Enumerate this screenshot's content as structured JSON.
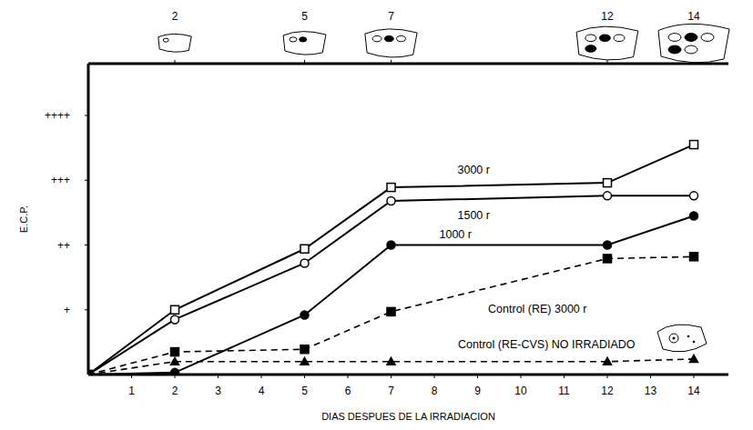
{
  "chart_data": {
    "type": "line",
    "x_label": "DIAS DESPUES DE LA IRRADIACION",
    "y_label": "E.C.P.",
    "x": [
      0,
      2,
      5,
      7,
      12,
      14
    ],
    "xlim": [
      0,
      14.8
    ],
    "xticks": [
      1,
      2,
      3,
      4,
      5,
      6,
      7,
      8,
      9,
      10,
      11,
      12,
      13,
      14
    ],
    "x2ticks": [
      2,
      5,
      7,
      12,
      14
    ],
    "ylim": [
      0,
      4.8
    ],
    "yticks": [
      {
        "value": 1,
        "label": "+"
      },
      {
        "value": 2,
        "label": "++"
      },
      {
        "value": 3,
        "label": "+++"
      },
      {
        "value": 4,
        "label": "++++"
      }
    ],
    "grid": false,
    "series": [
      {
        "name": "3000 r",
        "color": "#000000",
        "marker": "square-open",
        "line_style": "solid",
        "values": [
          0,
          1.0,
          1.94,
          2.89,
          2.96,
          3.55
        ]
      },
      {
        "name": "1500 r",
        "color": "#000000",
        "marker": "circle-open",
        "line_style": "solid",
        "values": [
          0,
          0.85,
          1.72,
          2.68,
          2.76,
          2.76
        ]
      },
      {
        "name": "1000 r",
        "color": "#000000",
        "marker": "circle",
        "line_style": "solid",
        "values": [
          0,
          0.03,
          0.92,
          2.0,
          2.0,
          2.45
        ]
      },
      {
        "name": "Control (RE) 3000 r",
        "color": "#000000",
        "marker": "square",
        "line_style": "dashed",
        "values": [
          0,
          0.35,
          0.39,
          0.97,
          1.79,
          1.82
        ]
      },
      {
        "name": "Control (RE-CVS) NO IRRADIADO",
        "color": "#000000",
        "marker": "triangle",
        "line_style": "dashed",
        "values": [
          0,
          0.2,
          0.2,
          0.2,
          0.2,
          0.24
        ]
      }
    ]
  }
}
